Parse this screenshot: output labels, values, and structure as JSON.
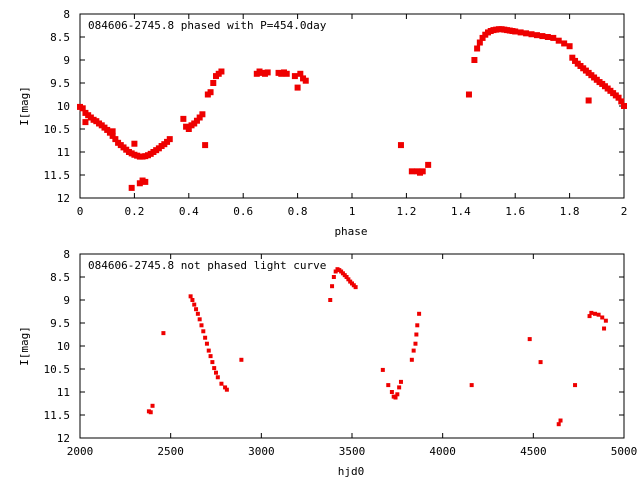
{
  "chart_data": [
    {
      "type": "scatter",
      "title": "084606-2745.8 phased with P=454.0day",
      "xlabel": "phase",
      "ylabel": "I[mag]",
      "xlim": [
        0,
        2
      ],
      "ylim": [
        12,
        8
      ],
      "y_inverted": true,
      "grid": false,
      "point_color": "#ee0000",
      "x_ticks": [
        0,
        0.2,
        0.4,
        0.6,
        0.8,
        1,
        1.2,
        1.4,
        1.6,
        1.8,
        2
      ],
      "x_tick_labels": [
        "0",
        "0.2",
        "0.4",
        "0.6",
        "0.8",
        "1",
        "1.2",
        "1.4",
        "1.6",
        "1.8",
        "2"
      ],
      "y_ticks": [
        8,
        8.5,
        9,
        9.5,
        10,
        10.5,
        11,
        11.5,
        12
      ],
      "y_tick_labels": [
        "8",
        "8.5",
        "9",
        "9.5",
        "10",
        "10.5",
        "11",
        "11.5",
        "12"
      ],
      "points": [
        [
          0.0,
          10.02
        ],
        [
          0.01,
          10.05
        ],
        [
          0.02,
          10.15
        ],
        [
          0.03,
          10.2
        ],
        [
          0.04,
          10.25
        ],
        [
          0.05,
          10.3
        ],
        [
          0.06,
          10.33
        ],
        [
          0.07,
          10.38
        ],
        [
          0.08,
          10.42
        ],
        [
          0.09,
          10.47
        ],
        [
          0.1,
          10.52
        ],
        [
          0.11,
          10.58
        ],
        [
          0.12,
          10.65
        ],
        [
          0.13,
          10.72
        ],
        [
          0.14,
          10.8
        ],
        [
          0.15,
          10.85
        ],
        [
          0.16,
          10.9
        ],
        [
          0.17,
          10.95
        ],
        [
          0.18,
          11.0
        ],
        [
          0.19,
          11.03
        ],
        [
          0.2,
          11.06
        ],
        [
          0.21,
          11.08
        ],
        [
          0.22,
          11.1
        ],
        [
          0.23,
          11.1
        ],
        [
          0.24,
          11.09
        ],
        [
          0.25,
          11.07
        ],
        [
          0.26,
          11.04
        ],
        [
          0.27,
          11.0
        ],
        [
          0.28,
          10.96
        ],
        [
          0.29,
          10.92
        ],
        [
          0.3,
          10.87
        ],
        [
          0.31,
          10.83
        ],
        [
          0.32,
          10.78
        ],
        [
          0.33,
          10.72
        ],
        [
          0.19,
          11.78
        ],
        [
          0.22,
          11.68
        ],
        [
          0.23,
          11.62
        ],
        [
          0.24,
          11.65
        ],
        [
          0.02,
          10.35
        ],
        [
          0.12,
          10.55
        ],
        [
          0.2,
          10.82
        ],
        [
          0.38,
          10.28
        ],
        [
          0.39,
          10.45
        ],
        [
          0.4,
          10.5
        ],
        [
          0.41,
          10.42
        ],
        [
          0.42,
          10.38
        ],
        [
          0.43,
          10.32
        ],
        [
          0.44,
          10.25
        ],
        [
          0.45,
          10.18
        ],
        [
          0.46,
          10.85
        ],
        [
          0.47,
          9.75
        ],
        [
          0.48,
          9.7
        ],
        [
          0.49,
          9.5
        ],
        [
          0.5,
          9.35
        ],
        [
          0.51,
          9.3
        ],
        [
          0.52,
          9.25
        ],
        [
          0.65,
          9.3
        ],
        [
          0.66,
          9.25
        ],
        [
          0.67,
          9.28
        ],
        [
          0.68,
          9.3
        ],
        [
          0.69,
          9.27
        ],
        [
          0.73,
          9.28
        ],
        [
          0.74,
          9.3
        ],
        [
          0.75,
          9.27
        ],
        [
          0.76,
          9.3
        ],
        [
          0.79,
          9.35
        ],
        [
          0.8,
          9.6
        ],
        [
          0.81,
          9.3
        ],
        [
          0.82,
          9.4
        ],
        [
          0.83,
          9.45
        ],
        [
          1.18,
          10.85
        ],
        [
          1.22,
          11.42
        ],
        [
          1.24,
          11.42
        ],
        [
          1.25,
          11.45
        ],
        [
          1.26,
          11.42
        ],
        [
          1.28,
          11.28
        ],
        [
          1.43,
          9.75
        ],
        [
          1.45,
          9.0
        ],
        [
          1.46,
          8.75
        ],
        [
          1.47,
          8.62
        ],
        [
          1.48,
          8.52
        ],
        [
          1.49,
          8.45
        ],
        [
          1.5,
          8.4
        ],
        [
          1.51,
          8.37
        ],
        [
          1.52,
          8.35
        ],
        [
          1.53,
          8.34
        ],
        [
          1.54,
          8.33
        ],
        [
          1.55,
          8.33
        ],
        [
          1.56,
          8.34
        ],
        [
          1.57,
          8.35
        ],
        [
          1.58,
          8.36
        ],
        [
          1.59,
          8.37
        ],
        [
          1.6,
          8.38
        ],
        [
          1.62,
          8.4
        ],
        [
          1.64,
          8.42
        ],
        [
          1.66,
          8.44
        ],
        [
          1.68,
          8.46
        ],
        [
          1.7,
          8.48
        ],
        [
          1.72,
          8.5
        ],
        [
          1.74,
          8.52
        ],
        [
          1.76,
          8.58
        ],
        [
          1.78,
          8.64
        ],
        [
          1.8,
          8.7
        ],
        [
          1.81,
          8.95
        ],
        [
          1.82,
          9.02
        ],
        [
          1.83,
          9.08
        ],
        [
          1.84,
          9.13
        ],
        [
          1.85,
          9.18
        ],
        [
          1.86,
          9.23
        ],
        [
          1.87,
          9.28
        ],
        [
          1.88,
          9.33
        ],
        [
          1.89,
          9.38
        ],
        [
          1.9,
          9.43
        ],
        [
          1.91,
          9.48
        ],
        [
          1.92,
          9.52
        ],
        [
          1.93,
          9.57
        ],
        [
          1.94,
          9.62
        ],
        [
          1.95,
          9.67
        ],
        [
          1.96,
          9.72
        ],
        [
          1.97,
          9.77
        ],
        [
          1.98,
          9.82
        ],
        [
          1.99,
          9.9
        ],
        [
          2.0,
          10.0
        ],
        [
          1.87,
          9.88
        ]
      ]
    },
    {
      "type": "scatter",
      "title": "084606-2745.8 not phased light curve",
      "xlabel": "hjd0",
      "ylabel": "I[mag]",
      "xlim": [
        2000,
        5000
      ],
      "ylim": [
        12,
        8
      ],
      "y_inverted": true,
      "grid": false,
      "point_color": "#ee0000",
      "x_ticks": [
        2000,
        2500,
        3000,
        3500,
        4000,
        4500,
        5000
      ],
      "x_tick_labels": [
        "2000",
        "2500",
        "3000",
        "3500",
        "4000",
        "4500",
        "5000"
      ],
      "y_ticks": [
        8,
        8.5,
        9,
        9.5,
        10,
        10.5,
        11,
        11.5,
        12
      ],
      "y_tick_labels": [
        "8",
        "8.5",
        "9",
        "9.5",
        "10",
        "10.5",
        "11",
        "11.5",
        "12"
      ],
      "points": [
        [
          2380,
          11.42
        ],
        [
          2390,
          11.44
        ],
        [
          2400,
          11.3
        ],
        [
          2460,
          9.72
        ],
        [
          2610,
          8.92
        ],
        [
          2620,
          9.0
        ],
        [
          2630,
          9.1
        ],
        [
          2640,
          9.2
        ],
        [
          2650,
          9.3
        ],
        [
          2660,
          9.42
        ],
        [
          2670,
          9.55
        ],
        [
          2680,
          9.68
        ],
        [
          2690,
          9.82
        ],
        [
          2700,
          9.95
        ],
        [
          2710,
          10.1
        ],
        [
          2720,
          10.22
        ],
        [
          2730,
          10.35
        ],
        [
          2740,
          10.48
        ],
        [
          2750,
          10.58
        ],
        [
          2760,
          10.68
        ],
        [
          2780,
          10.82
        ],
        [
          2800,
          10.9
        ],
        [
          2810,
          10.95
        ],
        [
          2890,
          10.3
        ],
        [
          3380,
          9.0
        ],
        [
          3390,
          8.7
        ],
        [
          3400,
          8.5
        ],
        [
          3410,
          8.38
        ],
        [
          3420,
          8.33
        ],
        [
          3430,
          8.35
        ],
        [
          3440,
          8.38
        ],
        [
          3450,
          8.42
        ],
        [
          3460,
          8.46
        ],
        [
          3470,
          8.5
        ],
        [
          3480,
          8.55
        ],
        [
          3490,
          8.6
        ],
        [
          3500,
          8.64
        ],
        [
          3510,
          8.68
        ],
        [
          3520,
          8.72
        ],
        [
          3670,
          10.52
        ],
        [
          3700,
          10.85
        ],
        [
          3720,
          11.0
        ],
        [
          3730,
          11.1
        ],
        [
          3740,
          11.12
        ],
        [
          3750,
          11.05
        ],
        [
          3760,
          10.9
        ],
        [
          3770,
          10.78
        ],
        [
          3830,
          10.3
        ],
        [
          3840,
          10.1
        ],
        [
          3850,
          9.95
        ],
        [
          3855,
          9.75
        ],
        [
          3860,
          9.55
        ],
        [
          3870,
          9.3
        ],
        [
          4160,
          10.85
        ],
        [
          4480,
          9.85
        ],
        [
          4540,
          10.35
        ],
        [
          4640,
          11.7
        ],
        [
          4650,
          11.62
        ],
        [
          4730,
          10.85
        ],
        [
          4810,
          9.35
        ],
        [
          4820,
          9.28
        ],
        [
          4840,
          9.3
        ],
        [
          4860,
          9.32
        ],
        [
          4880,
          9.38
        ],
        [
          4900,
          9.45
        ],
        [
          4890,
          9.62
        ]
      ]
    }
  ]
}
